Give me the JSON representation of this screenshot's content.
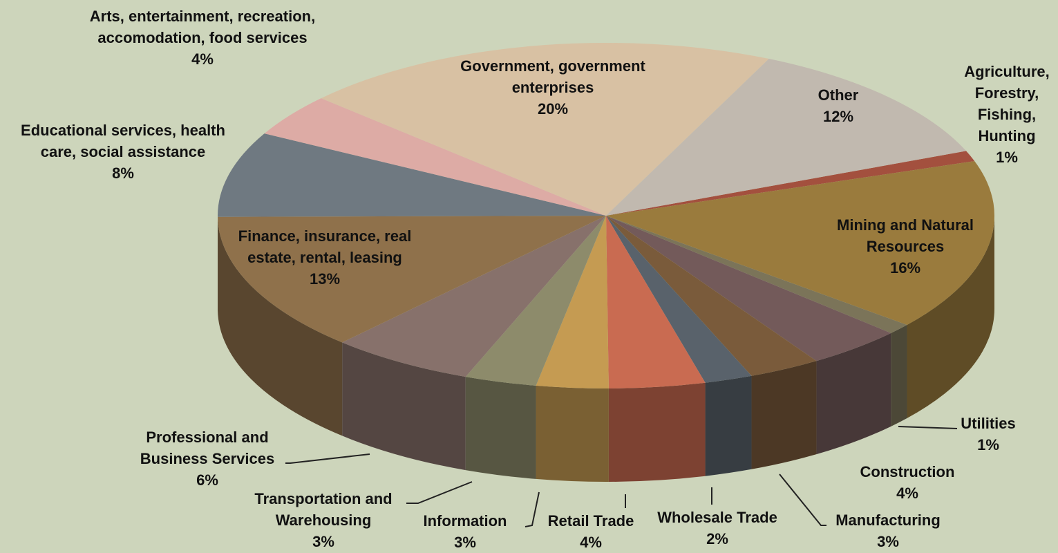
{
  "chart_data": {
    "type": "pie",
    "three_d": true,
    "categories": [
      "Agriculture, Forestry, Fishing, Hunting",
      "Mining and Natural Resources",
      "Utilities",
      "Construction",
      "Manufacturing",
      "Wholesale Trade",
      "Retail Trade",
      "Information",
      "Transportation and Warehousing",
      "Professional and Business Services",
      "Finance, insurance, real estate, rental, leasing",
      "Educational services, health care, social assistance",
      "Arts, entertainment, recreation, accomodation, food services",
      "Government, government enterprises",
      "Other"
    ],
    "values": [
      1,
      16,
      1,
      4,
      3,
      2,
      4,
      3,
      3,
      6,
      13,
      8,
      4,
      20,
      12
    ],
    "value_labels": [
      "1%",
      "16%",
      "1%",
      "4%",
      "3%",
      "2%",
      "4%",
      "3%",
      "3%",
      "6%",
      "13%",
      "8%",
      "4%",
      "20%",
      "12%"
    ],
    "colors": [
      "#a3503e",
      "#9a7b3d",
      "#7b7459",
      "#735a5a",
      "#7a5b3b",
      "#59626b",
      "#c96b51",
      "#c59b52",
      "#8d8b6b",
      "#87716b",
      "#8f714b",
      "#6f7981",
      "#ddaba5",
      "#d8c1a3",
      "#c1b9af"
    ]
  }
}
